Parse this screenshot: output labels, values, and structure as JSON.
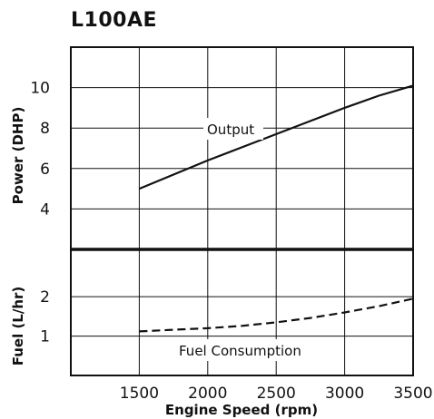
{
  "chart_data": [
    {
      "title": "L100AE",
      "type": "line",
      "ylabel": "Power (DHP)",
      "ylim": [
        2.0,
        12.0
      ],
      "yticks": [
        4,
        6,
        8,
        10
      ],
      "xlim": [
        1000,
        3500
      ],
      "xticks": [
        1500,
        2000,
        2500,
        3000,
        3500
      ],
      "grid": true,
      "series": [
        {
          "name": "Output",
          "style": "solid",
          "x": [
            1500,
            1750,
            2000,
            2250,
            2500,
            2750,
            3000,
            3250,
            3500
          ],
          "y": [
            5.0,
            5.7,
            6.4,
            7.05,
            7.7,
            8.35,
            9.0,
            9.6,
            10.1
          ]
        }
      ]
    },
    {
      "type": "line",
      "ylabel": "Fuel (L/hr)",
      "ylim": [
        0,
        3.2
      ],
      "yticks": [
        1,
        2
      ],
      "xlim": [
        1000,
        3500
      ],
      "xticks": [
        1500,
        2000,
        2500,
        3000,
        3500
      ],
      "xlabel": "Engine Speed (rpm)",
      "grid": true,
      "series": [
        {
          "name": "Fuel Consumption",
          "style": "dashed",
          "x": [
            1500,
            1750,
            2000,
            2250,
            2500,
            2750,
            3000,
            3250,
            3500
          ],
          "y": [
            1.12,
            1.16,
            1.2,
            1.26,
            1.35,
            1.46,
            1.6,
            1.76,
            1.95
          ]
        }
      ]
    }
  ]
}
